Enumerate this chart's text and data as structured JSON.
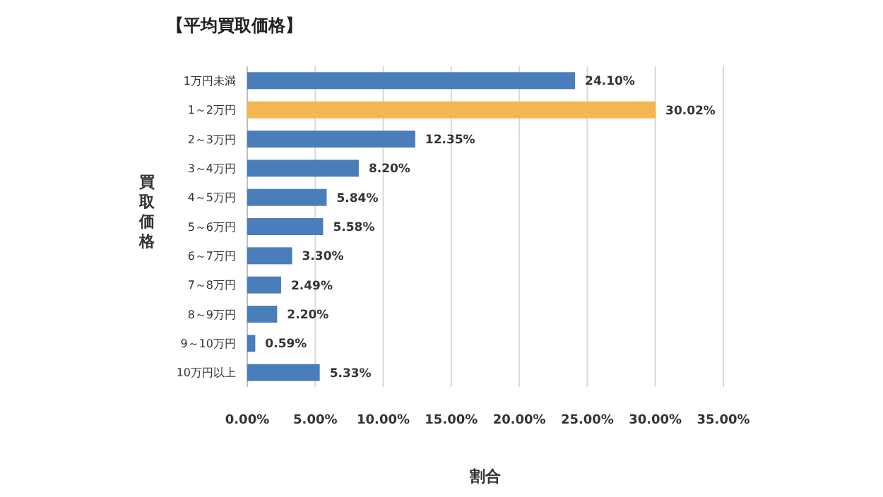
{
  "chart_data": {
    "type": "bar",
    "orientation": "horizontal",
    "title": "【平均買取価格】",
    "xlabel": "割合",
    "ylabel": "買取価格",
    "categories": [
      "1万円未満",
      "1～2万円",
      "2～3万円",
      "3～4万円",
      "4～5万円",
      "5～6万円",
      "6～7万円",
      "7～8万円",
      "8～9万円",
      "9～10万円",
      "10万円以上"
    ],
    "values": [
      24.1,
      30.02,
      12.35,
      8.2,
      5.84,
      5.58,
      3.3,
      2.49,
      2.2,
      0.59,
      5.33
    ],
    "value_labels": [
      "24.10%",
      "30.02%",
      "12.35%",
      "8.20%",
      "5.84%",
      "5.58%",
      "3.30%",
      "2.49%",
      "2.20%",
      "0.59%",
      "5.33%"
    ],
    "colors": [
      "#4a7ebb",
      "#f5b54f",
      "#4a7ebb",
      "#4a7ebb",
      "#4a7ebb",
      "#4a7ebb",
      "#4a7ebb",
      "#4a7ebb",
      "#4a7ebb",
      "#4a7ebb",
      "#4a7ebb"
    ],
    "xlim": [
      0,
      35
    ],
    "xticks": [
      {
        "value": 0,
        "label": "0.00%"
      },
      {
        "value": 5,
        "label": "5.00%"
      },
      {
        "value": 10,
        "label": "10.00%"
      },
      {
        "value": 15,
        "label": "15.00%"
      },
      {
        "value": 20,
        "label": "20.00%"
      },
      {
        "value": 25,
        "label": "25.00%"
      },
      {
        "value": 30,
        "label": "30.00%"
      },
      {
        "value": 35,
        "label": "35.00%"
      }
    ],
    "grid": "x"
  }
}
